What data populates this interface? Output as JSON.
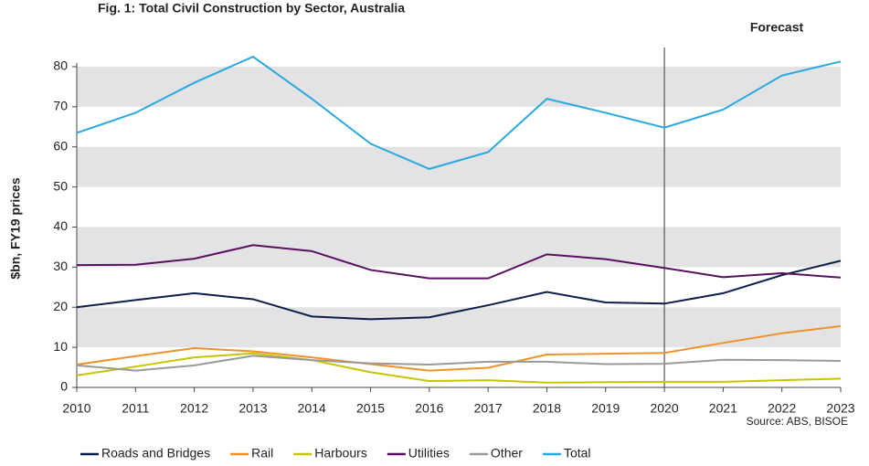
{
  "chart_data": {
    "type": "line",
    "title": "Fig. 1: Total Civil Construction by Sector, Australia",
    "y_label": "$bn, FY19 prices",
    "source": "Source: ABS, BISOE",
    "annotations": [
      {
        "text": "Forecast",
        "x": 2020
      }
    ],
    "x": [
      2010,
      2011,
      2012,
      2013,
      2014,
      2015,
      2016,
      2017,
      2018,
      2019,
      2020,
      2021,
      2022,
      2023
    ],
    "xlim": [
      2010,
      2023
    ],
    "xticks": [
      2010,
      2011,
      2012,
      2013,
      2014,
      2015,
      2016,
      2017,
      2018,
      2019,
      2020,
      2021,
      2022,
      2023
    ],
    "ylim": [
      0,
      80
    ],
    "yticks": [
      0,
      10,
      20,
      30,
      40,
      50,
      60,
      70,
      80
    ],
    "grid": "bands",
    "legend": "bottom",
    "series": [
      {
        "name": "Roads and Bridges",
        "color": "#0b1f4a",
        "values": [
          20,
          21.8,
          23.5,
          22,
          17.7,
          17,
          17.5,
          20.5,
          23.8,
          21.2,
          20.9,
          23.5,
          28,
          31.6
        ]
      },
      {
        "name": "Rail",
        "color": "#f0922b",
        "values": [
          5.7,
          7.8,
          9.8,
          9,
          7.5,
          5.8,
          4.2,
          4.9,
          8.2,
          8.4,
          8.6,
          11.1,
          13.5,
          15.3
        ]
      },
      {
        "name": "Harbours",
        "color": "#c4c700",
        "values": [
          3,
          5.2,
          7.5,
          8.5,
          6.8,
          3.8,
          1.6,
          1.8,
          1.2,
          1.3,
          1.4,
          1.4,
          1.8,
          2.2
        ]
      },
      {
        "name": "Utilities",
        "color": "#5a1060",
        "values": [
          30.5,
          30.6,
          32.1,
          35.5,
          34,
          29.3,
          27.2,
          27.2,
          33.2,
          32,
          29.8,
          27.5,
          28.5,
          27.4
        ]
      },
      {
        "name": "Other",
        "color": "#9a9a9a",
        "values": [
          5.5,
          4.2,
          5.5,
          7.9,
          6.8,
          6,
          5.7,
          6.4,
          6.4,
          5.8,
          5.9,
          6.9,
          6.8,
          6.6
        ]
      },
      {
        "name": "Total",
        "color": "#2aa9e0",
        "values": [
          63.5,
          68.5,
          76,
          82.5,
          72,
          60.8,
          54.5,
          58.7,
          72,
          68.5,
          64.8,
          69.3,
          77.8,
          81.3
        ]
      }
    ]
  }
}
